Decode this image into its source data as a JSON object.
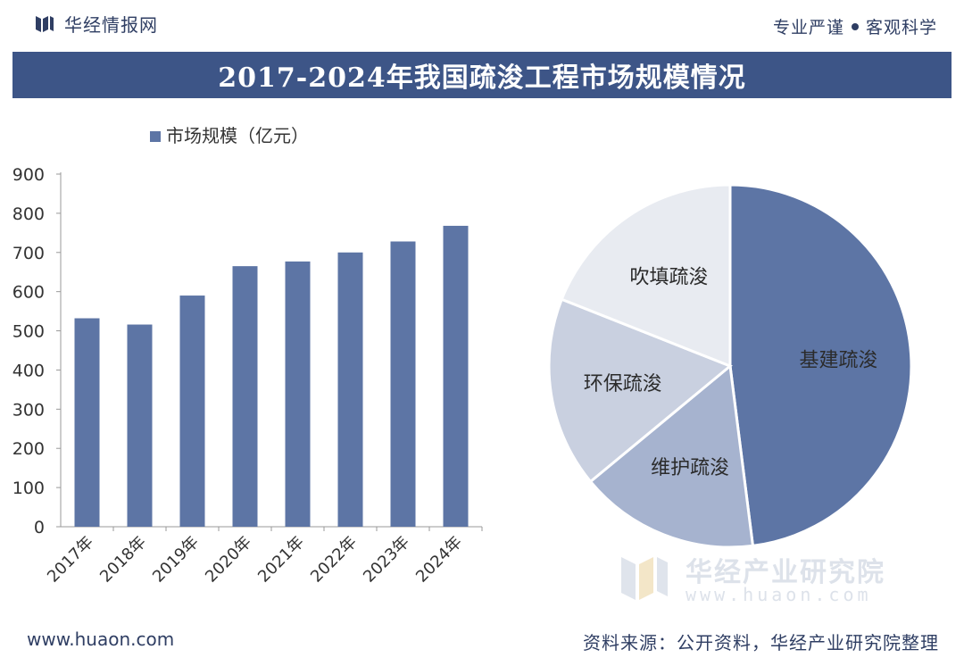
{
  "header": {
    "brand": "华经情报网",
    "tagline_left": "专业严谨",
    "tagline_right": "客观科学"
  },
  "title": "2017-2024年我国疏浚工程市场规模情况",
  "chart_data": [
    {
      "type": "bar",
      "legend": "市场规模（亿元）",
      "categories": [
        "2017年",
        "2018年",
        "2019年",
        "2020年",
        "2021年",
        "2022年",
        "2023年",
        "2024年"
      ],
      "values": [
        532,
        516,
        590,
        665,
        677,
        700,
        728,
        768
      ],
      "ylim": [
        0,
        900
      ],
      "yticks": [
        0,
        100,
        200,
        300,
        400,
        500,
        600,
        700,
        800,
        900
      ],
      "color": "#5d75a5"
    },
    {
      "type": "pie",
      "slices": [
        {
          "label": "基建疏浚",
          "value": 48,
          "color": "#5d75a5"
        },
        {
          "label": "维护疏浚",
          "value": 16,
          "color": "#a6b3cf"
        },
        {
          "label": "环保疏浚",
          "value": 17,
          "color": "#c9d0e0"
        },
        {
          "label": "吹填疏浚",
          "value": 19,
          "color": "#e8ebf1"
        }
      ]
    }
  ],
  "watermark": {
    "name": "华经产业研究院",
    "url": "www.huaon.com"
  },
  "footer": {
    "url": "www.huaon.com",
    "source": "资料来源：公开资料，华经产业研究院整理"
  }
}
